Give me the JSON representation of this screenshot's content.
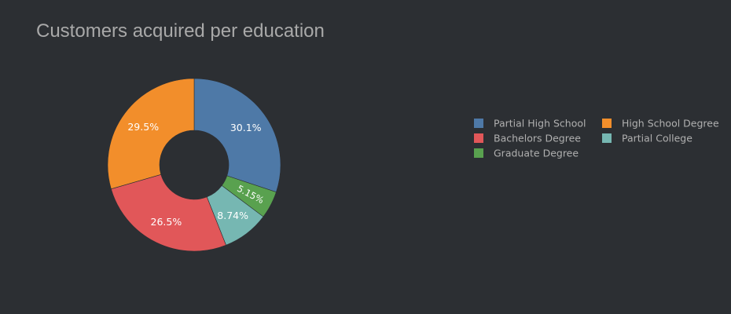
{
  "chart_data": {
    "type": "pie",
    "title": "Customers acquired per education",
    "hole": true,
    "legend_position": "right",
    "slices": [
      {
        "label": "Partial High School",
        "value": 30.1,
        "text": "30.1%",
        "color": "#4e79a7"
      },
      {
        "label": "Graduate Degree",
        "value": 5.15,
        "text": "5.15%",
        "color": "#59a14f"
      },
      {
        "label": "Partial College",
        "value": 8.74,
        "text": "8.74%",
        "color": "#76b7b2"
      },
      {
        "label": "Bachelors Degree",
        "value": 26.5,
        "text": "26.5%",
        "color": "#e15759"
      },
      {
        "label": "High School Degree",
        "value": 29.5,
        "text": "29.5%",
        "color": "#f28e2b"
      }
    ],
    "legend": [
      {
        "label": "Partial High School",
        "color": "#4e79a7"
      },
      {
        "label": "High School Degree",
        "color": "#f28e2b"
      },
      {
        "label": "Bachelors Degree",
        "color": "#e15759"
      },
      {
        "label": "Partial College",
        "color": "#76b7b2"
      },
      {
        "label": "Graduate Degree",
        "color": "#59a14f"
      }
    ]
  }
}
